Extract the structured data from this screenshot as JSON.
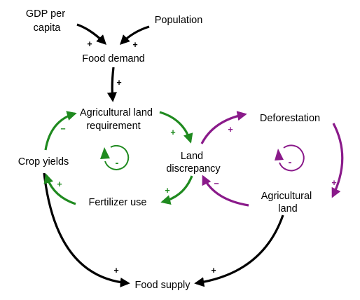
{
  "colors": {
    "black": "#000000",
    "green": "#1f8a1f",
    "purple": "#8a1a8a"
  },
  "nodes": {
    "gdp_line1": "GDP per",
    "gdp_line2": "capita",
    "population": "Population",
    "food_demand": "Food demand",
    "ag_land_req_line1": "Agricultural land",
    "ag_land_req_line2": "requirement",
    "crop_yields": "Crop yields",
    "land_disc_line1": "Land",
    "land_disc_line2": "discrepancy",
    "fertilizer_use": "Fertilizer use",
    "deforestation": "Deforestation",
    "ag_land_line1": "Agricultural",
    "ag_land_line2": "land",
    "food_supply": "Food supply"
  },
  "links": {
    "gdp_to_demand": "+",
    "population_to_demand": "+",
    "demand_to_requirement": "+",
    "yields_to_requirement": "−",
    "requirement_to_discrepancy": "+",
    "discrepancy_to_fertilizer": "+",
    "fertilizer_to_yields": "+",
    "discrepancy_to_deforestation": "+",
    "deforestation_to_agland": "+",
    "agland_to_discrepancy": "−",
    "yields_to_supply": "+",
    "agland_to_supply": "+"
  },
  "loops": {
    "green_loop": "-",
    "purple_loop": "-"
  }
}
